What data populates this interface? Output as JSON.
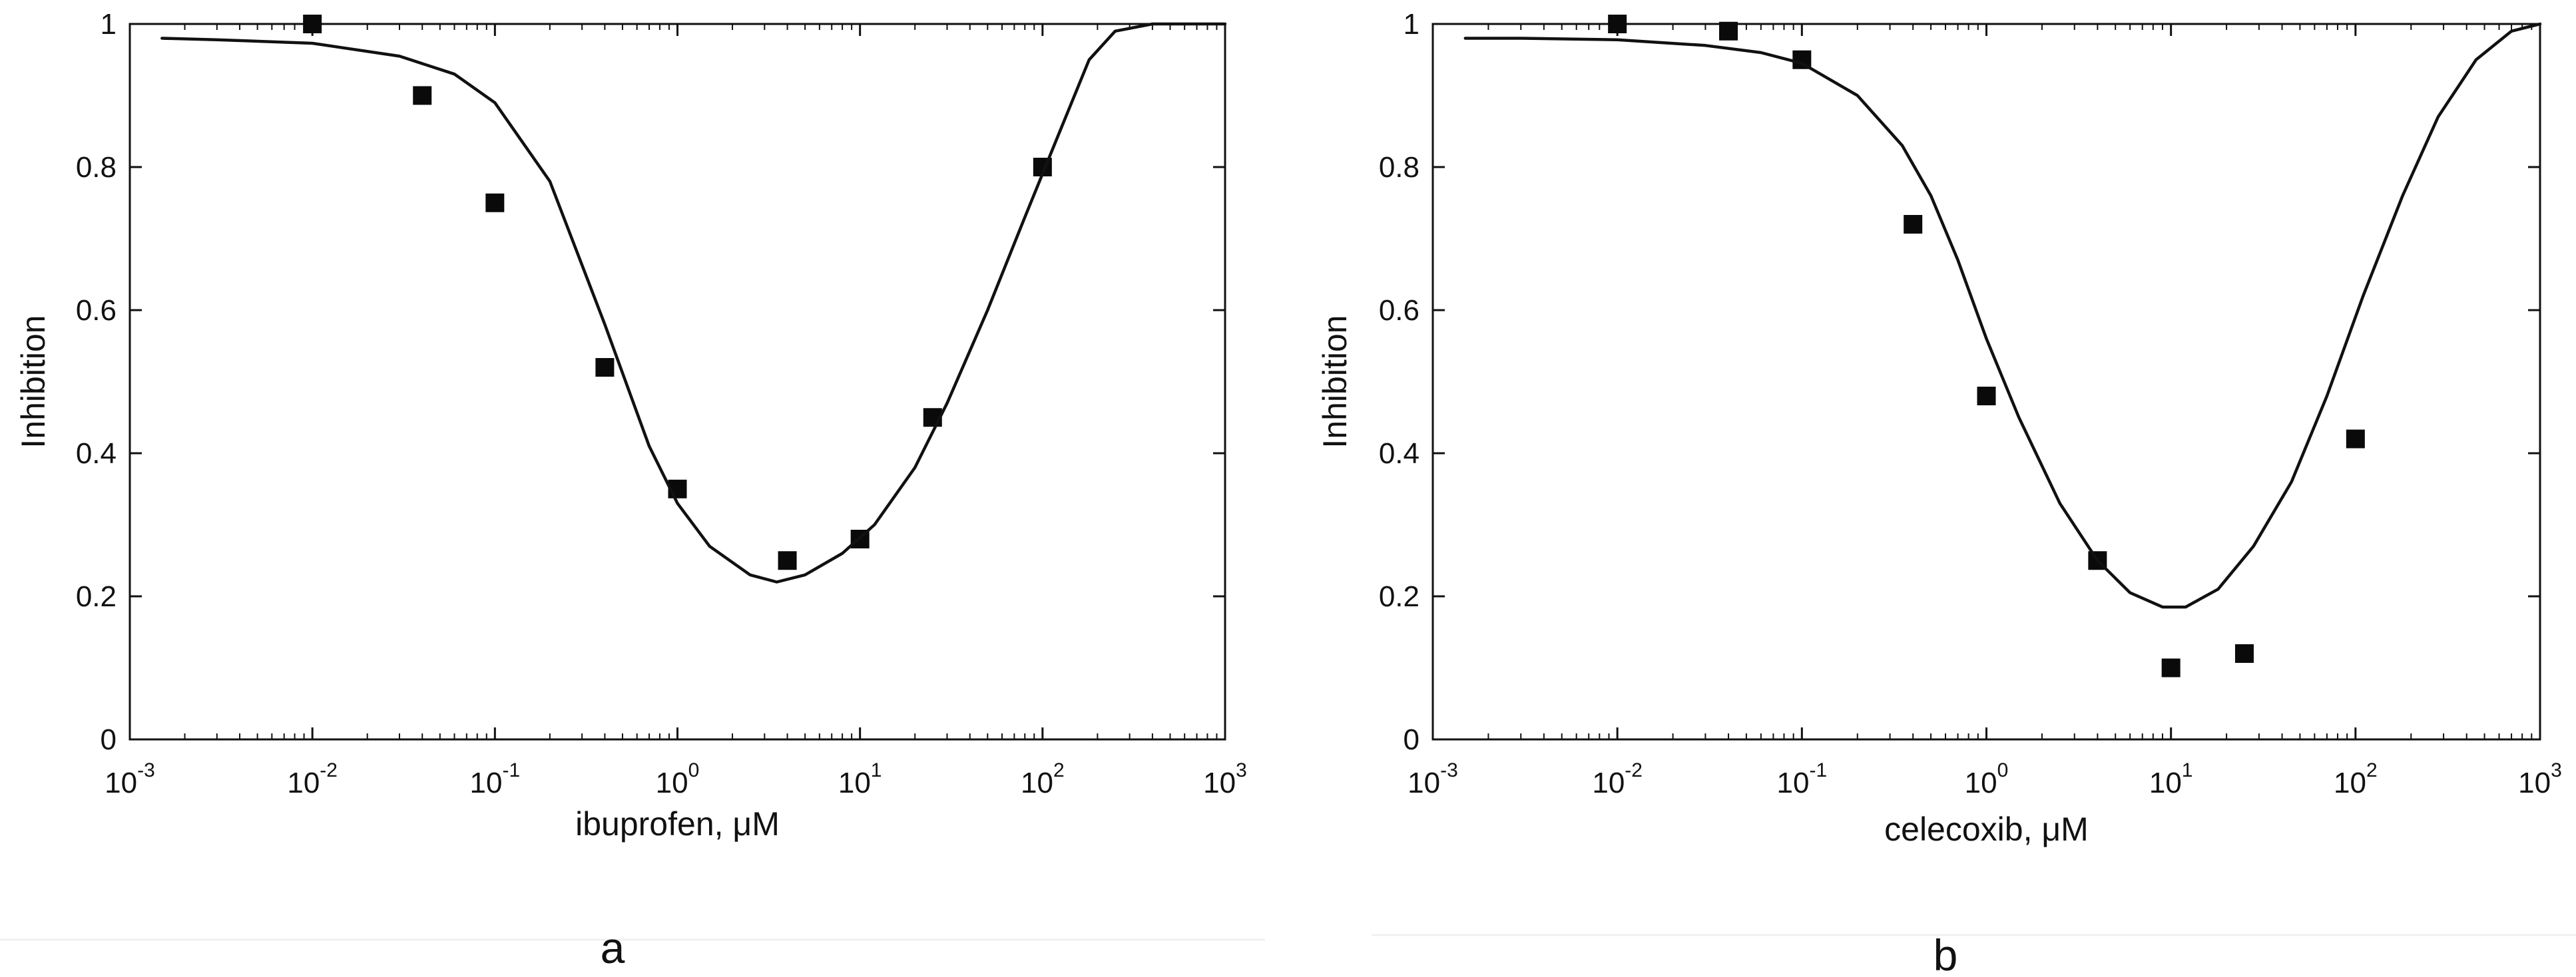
{
  "colors": {
    "line": "#111111",
    "marker": "#0a0a0a",
    "background": "#ffffff"
  },
  "chart_data": [
    {
      "type": "scatter",
      "panel_label": "a",
      "xlabel": "ibuprofen,",
      "xlabel_unit": "μM",
      "ylabel": "Inhibition",
      "xscale": "log",
      "xlim": [
        0.001,
        1000
      ],
      "ylim": [
        0,
        1
      ],
      "grid": false,
      "x_ticks": [
        {
          "base": "10",
          "exp": "-3"
        },
        {
          "base": "10",
          "exp": "-2"
        },
        {
          "base": "10",
          "exp": "-1"
        },
        {
          "base": "10",
          "exp": "0"
        },
        {
          "base": "10",
          "exp": "1"
        },
        {
          "base": "10",
          "exp": "2"
        },
        {
          "base": "10",
          "exp": "3"
        }
      ],
      "y_ticks": [
        "0",
        "0.2",
        "0.4",
        "0.6",
        "0.8",
        "1"
      ],
      "series": [
        {
          "kind": "points",
          "x": [
            0.01,
            0.04,
            0.1,
            0.4,
            1,
            4,
            10,
            25,
            100
          ],
          "y": [
            1.0,
            0.9,
            0.75,
            0.52,
            0.35,
            0.25,
            0.28,
            0.45,
            0.8
          ]
        },
        {
          "kind": "line",
          "x": [
            0.0015,
            0.003,
            0.01,
            0.03,
            0.06,
            0.1,
            0.2,
            0.4,
            0.7,
            1,
            1.5,
            2.5,
            3.5,
            5,
            8,
            12,
            20,
            30,
            50,
            80,
            120,
            180,
            250,
            400,
            1000
          ],
          "y": [
            0.98,
            0.978,
            0.973,
            0.955,
            0.93,
            0.89,
            0.78,
            0.58,
            0.41,
            0.33,
            0.27,
            0.23,
            0.22,
            0.23,
            0.26,
            0.3,
            0.38,
            0.47,
            0.6,
            0.73,
            0.84,
            0.95,
            0.99,
            1.0,
            1.0
          ]
        }
      ]
    },
    {
      "type": "scatter",
      "panel_label": "b",
      "xlabel": "celecoxib,",
      "xlabel_unit": "μM",
      "ylabel": "Inhibition",
      "xscale": "log",
      "xlim": [
        0.001,
        1000
      ],
      "ylim": [
        0,
        1
      ],
      "grid": false,
      "x_ticks": [
        {
          "base": "10",
          "exp": "-3"
        },
        {
          "base": "10",
          "exp": "-2"
        },
        {
          "base": "10",
          "exp": "-1"
        },
        {
          "base": "10",
          "exp": "0"
        },
        {
          "base": "10",
          "exp": "1"
        },
        {
          "base": "10",
          "exp": "2"
        },
        {
          "base": "10",
          "exp": "3"
        }
      ],
      "y_ticks": [
        "0",
        "0.2",
        "0.4",
        "0.6",
        "0.8",
        "1"
      ],
      "series": [
        {
          "kind": "points",
          "x": [
            0.01,
            0.04,
            0.1,
            0.4,
            1,
            4,
            10,
            25,
            100
          ],
          "y": [
            1.0,
            0.99,
            0.95,
            0.72,
            0.48,
            0.25,
            0.1,
            0.12,
            0.42
          ]
        },
        {
          "kind": "line",
          "x": [
            0.0015,
            0.003,
            0.01,
            0.03,
            0.06,
            0.1,
            0.2,
            0.35,
            0.5,
            0.7,
            1,
            1.5,
            2.5,
            4,
            6,
            9,
            12,
            18,
            28,
            45,
            70,
            110,
            180,
            280,
            450,
            700,
            1000
          ],
          "y": [
            0.98,
            0.98,
            0.978,
            0.97,
            0.96,
            0.945,
            0.9,
            0.83,
            0.76,
            0.67,
            0.56,
            0.45,
            0.33,
            0.25,
            0.205,
            0.185,
            0.185,
            0.21,
            0.27,
            0.36,
            0.48,
            0.62,
            0.76,
            0.87,
            0.95,
            0.99,
            1.0
          ]
        }
      ]
    }
  ]
}
